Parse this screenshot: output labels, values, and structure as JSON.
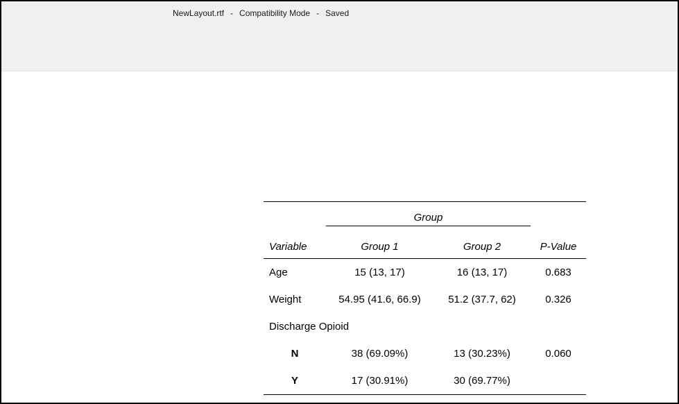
{
  "colors": {
    "titlebar_bg": "#f0f0f0",
    "window_border": "#000000",
    "table_text": "#000000",
    "title_text": "#1c1c1c"
  },
  "titlebar": {
    "filename": "NewLayout.rtf",
    "separator1": "-",
    "mode": "Compatibility Mode",
    "separator2": "-",
    "status": "Saved"
  },
  "table": {
    "spanner": "Group",
    "columns": [
      "Variable",
      "Group 1",
      "Group 2",
      "P-Value"
    ],
    "rows": [
      {
        "variable": "Age",
        "group1": "15 (13, 17)",
        "group2": "16 (13, 17)",
        "pvalue": "0.683"
      },
      {
        "variable": "Weight",
        "group1": "54.95 (41.6, 66.9)",
        "group2": "51.2 (37.7, 62)",
        "pvalue": "0.326"
      },
      {
        "variable": "Discharge Opioid",
        "group1": "",
        "group2": "",
        "pvalue": ""
      },
      {
        "variable": "N",
        "group1": "38 (69.09%)",
        "group2": "13 (30.23%)",
        "pvalue": "0.060"
      },
      {
        "variable": "Y",
        "group1": "17 (30.91%)",
        "group2": "30 (69.77%)",
        "pvalue": ""
      }
    ]
  }
}
